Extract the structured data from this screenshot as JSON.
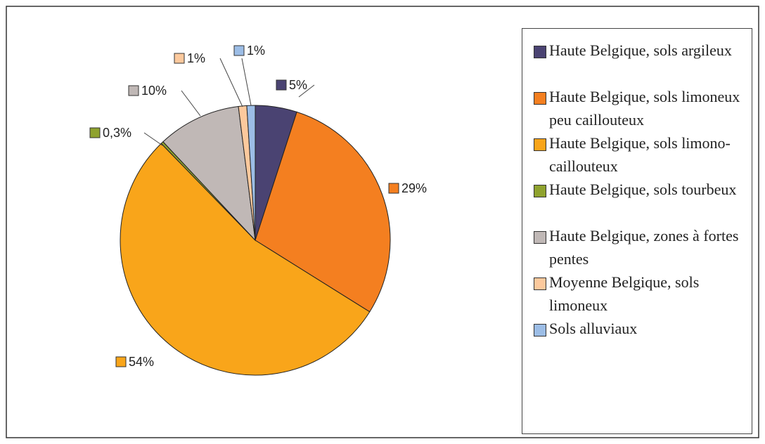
{
  "chart_data": {
    "type": "pie",
    "categories": [
      "Haute Belgique, sols argileux",
      "Haute Belgique, sols limoneux peu caillouteux",
      "Haute Belgique, sols limono-caillouteux",
      "Haute Belgique, sols tourbeux",
      "Haute Belgique, zones à fortes pentes",
      "Moyenne Belgique, sols limoneux",
      "Sols alluviaux"
    ],
    "values": [
      5,
      29,
      54,
      0.3,
      10,
      1,
      1
    ],
    "value_labels": [
      "5%",
      "29%",
      "54%",
      "0,3%",
      "10%",
      "1%",
      "1%"
    ],
    "colors": [
      "#4a4372",
      "#f47f20",
      "#f9a51a",
      "#8fa22e",
      "#c0b8b6",
      "#fcc99d",
      "#9cbde6"
    ],
    "legend": "right"
  }
}
